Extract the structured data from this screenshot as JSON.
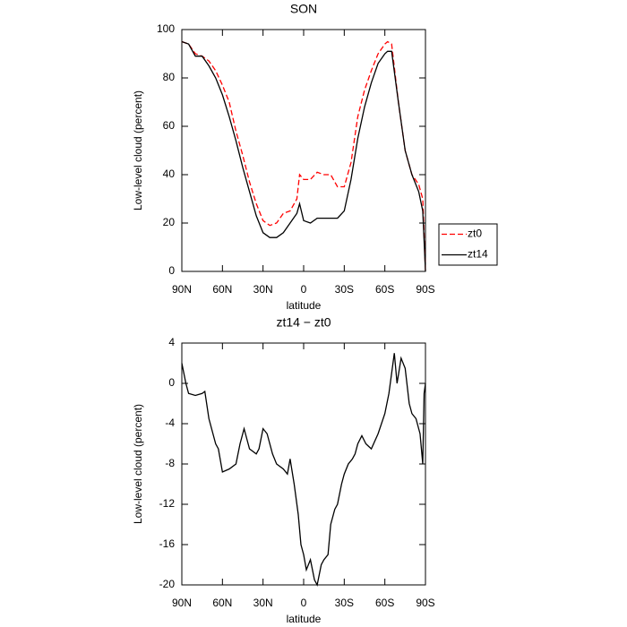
{
  "chart_data": [
    {
      "type": "line",
      "title": "SON",
      "x_label": "latitude",
      "y_label": "Low-level cloud (percent)",
      "x": [
        90,
        85,
        80,
        75,
        70,
        65,
        60,
        55,
        50,
        45,
        40,
        35,
        30,
        25,
        20,
        15,
        10,
        5,
        3,
        0,
        -5,
        -10,
        -15,
        -20,
        -25,
        -30,
        -35,
        -40,
        -45,
        -50,
        -55,
        -60,
        -62,
        -65,
        -70,
        -75,
        -80,
        -85,
        -88,
        -90
      ],
      "series": [
        {
          "name": "zt0",
          "color": "#ff0000",
          "style": "dashed",
          "values": [
            95,
            94,
            90,
            89,
            87,
            83,
            77,
            70,
            58,
            48,
            37,
            28,
            21,
            19,
            20,
            24,
            25,
            30,
            40,
            38,
            38,
            41,
            40,
            40,
            35,
            35,
            45,
            64,
            75,
            83,
            90,
            94,
            95,
            94,
            70,
            50,
            40,
            36,
            30,
            0
          ]
        },
        {
          "name": "zt14",
          "color": "#000000",
          "style": "solid",
          "values": [
            95,
            94,
            89,
            89,
            85,
            80,
            73,
            64,
            54,
            43,
            33,
            23,
            16,
            14,
            14,
            16,
            20,
            24,
            28,
            21,
            20,
            22,
            22,
            22,
            22,
            25,
            38,
            55,
            68,
            78,
            86,
            90,
            91,
            91,
            70,
            50,
            40,
            33,
            25,
            0
          ]
        }
      ],
      "xlim": [
        90,
        -90
      ],
      "xticks": [
        {
          "value": 90,
          "label": "90N"
        },
        {
          "value": 60,
          "label": "60N"
        },
        {
          "value": 30,
          "label": "30N"
        },
        0,
        {
          "value": -30,
          "label": "30S"
        },
        {
          "value": -60,
          "label": "60S"
        },
        {
          "value": -90,
          "label": "90S"
        }
      ],
      "ylim": [
        0,
        100
      ],
      "yticks": [
        0,
        20,
        40,
        60,
        80,
        100
      ],
      "legend": "right"
    },
    {
      "type": "line",
      "title": "zt14 − zt0",
      "x_label": "latitude",
      "y_label": "Low-level cloud (percent)",
      "x": [
        90,
        87,
        85,
        80,
        75,
        73,
        70,
        65,
        63,
        60,
        55,
        50,
        47,
        44,
        40,
        35,
        33,
        30,
        27,
        23,
        20,
        15,
        12,
        10,
        7,
        4,
        2,
        0,
        -2,
        -5,
        -8,
        -10,
        -13,
        -15,
        -18,
        -20,
        -23,
        -25,
        -28,
        -30,
        -33,
        -36,
        -38,
        -40,
        -43,
        -46,
        -50,
        -55,
        -60,
        -63,
        -65,
        -67,
        -69,
        -72,
        -75,
        -78,
        -80,
        -83,
        -86,
        -88,
        -89,
        -90
      ],
      "values": [
        2,
        0,
        -1,
        -1.2,
        -1,
        -0.8,
        -3.5,
        -6,
        -6.5,
        -8.8,
        -8.5,
        -8,
        -6,
        -4.5,
        -6.5,
        -7,
        -6.5,
        -4.5,
        -5,
        -7,
        -8,
        -8.5,
        -9,
        -7.5,
        -10,
        -13,
        -16,
        -17,
        -18.5,
        -17.5,
        -19.5,
        -20,
        -18,
        -17.5,
        -17,
        -14,
        -12.5,
        -12,
        -10,
        -9,
        -8,
        -7.5,
        -7,
        -6,
        -5.2,
        -6,
        -6.5,
        -5,
        -3,
        -1,
        1,
        3,
        0,
        2.5,
        1.5,
        -2,
        -3,
        -3.5,
        -5,
        -8,
        -1,
        0
      ],
      "color": "#000000",
      "xlim": [
        90,
        -90
      ],
      "xticks": [
        {
          "value": 90,
          "label": "90N"
        },
        {
          "value": 60,
          "label": "60N"
        },
        {
          "value": 30,
          "label": "30N"
        },
        0,
        {
          "value": -30,
          "label": "30S"
        },
        {
          "value": -60,
          "label": "60S"
        },
        {
          "value": -90,
          "label": "90S"
        }
      ],
      "ylim": [
        -20,
        4
      ],
      "yticks": [
        -20,
        -16,
        -12,
        -8,
        -4,
        0,
        4
      ]
    }
  ]
}
